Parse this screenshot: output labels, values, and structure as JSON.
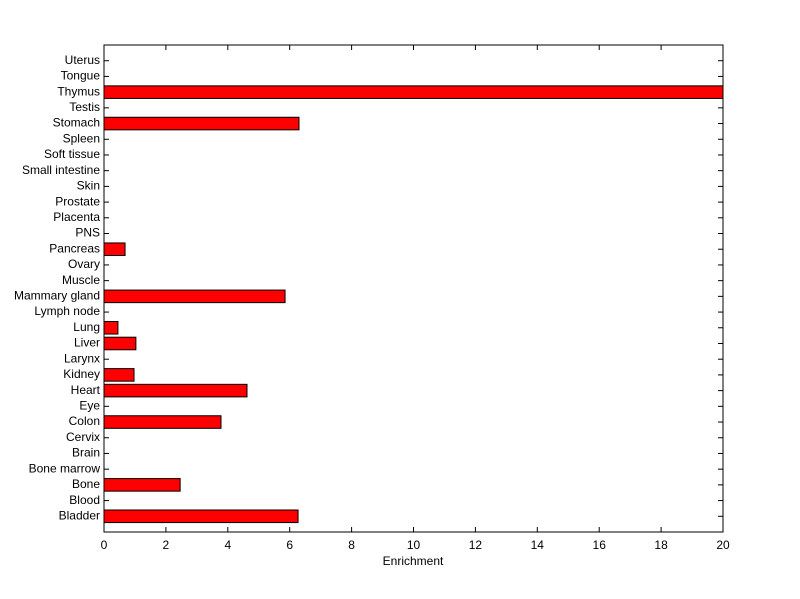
{
  "chart_data": {
    "type": "barh",
    "xlabel": "Enrichment",
    "categories": [
      "Bladder",
      "Blood",
      "Bone",
      "Bone marrow",
      "Brain",
      "Cervix",
      "Colon",
      "Eye",
      "Heart",
      "Kidney",
      "Larynx",
      "Liver",
      "Lung",
      "Lymph node",
      "Mammary gland",
      "Muscle",
      "Ovary",
      "Pancreas",
      "PNS",
      "Placenta",
      "Prostate",
      "Skin",
      "Small intestine",
      "Soft tissue",
      "Spleen",
      "Stomach",
      "Testis",
      "Thymus",
      "Tongue",
      "Uterus"
    ],
    "values": [
      6.27,
      0,
      2.46,
      0,
      0,
      0,
      3.78,
      0,
      4.62,
      0.97,
      0,
      1.03,
      0.45,
      0,
      5.85,
      0,
      0,
      0.68,
      0,
      0,
      0,
      0,
      0,
      0,
      0,
      6.3,
      0,
      20,
      0,
      0
    ],
    "color": "#ff0000",
    "xlim": [
      0,
      20
    ],
    "xticks": [
      0,
      2,
      4,
      6,
      8,
      10,
      12,
      14,
      16,
      18,
      20
    ]
  }
}
